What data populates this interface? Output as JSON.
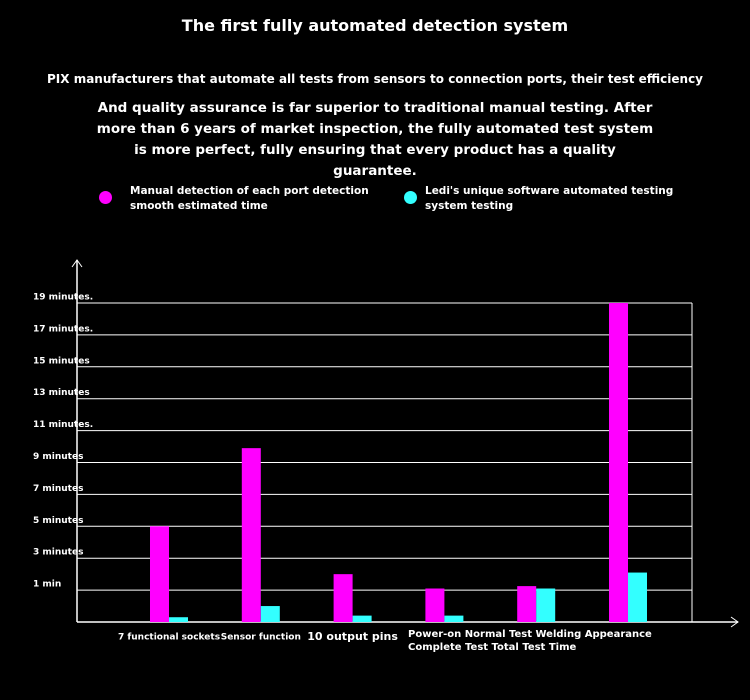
{
  "chart_data": {
    "type": "bar",
    "title": "The first fully automated detection system",
    "subtitle": "PIX manufacturers that automate all tests from sensors to connection ports, their test efficiency",
    "description": "And quality assurance is far superior to traditional manual testing. After more than 6 years of market inspection, the fully automated test system is more perfect, fully ensuring that every product has a quality guarantee.",
    "categories": [
      "7 functional sockets",
      "Sensor function",
      "10 output pins",
      null,
      null,
      null
    ],
    "x_annotation": [
      "Power-on Normal Test Welding Appearance",
      "Complete Test Total Test Time"
    ],
    "series": [
      {
        "name": "Manual detection of each port detection smooth estimated time",
        "color": "#ff00ff",
        "values": [
          5,
          9.9,
          2,
          1.1,
          1.25,
          19
        ]
      },
      {
        "name": "Ledi's unique software automated testing system testing",
        "color": "#33ffff",
        "values": [
          -0.7,
          0,
          -0.6,
          -0.6,
          1.1,
          2.1
        ]
      }
    ],
    "ylim": [
      -1,
      19
    ],
    "yticks": [
      {
        "value": 1,
        "label": "1 min"
      },
      {
        "value": 3,
        "label": "3 minutes"
      },
      {
        "value": 5,
        "label": "5 minutes"
      },
      {
        "value": 7,
        "label": "7 minutes"
      },
      {
        "value": 9,
        "label": "9 minutes"
      },
      {
        "value": 11,
        "label": "11 minutes."
      },
      {
        "value": 13,
        "label": "13 minutes"
      },
      {
        "value": 15,
        "label": "15 minutes"
      },
      {
        "value": 17,
        "label": "17 minutes."
      },
      {
        "value": 19,
        "label": "19 minutes."
      }
    ],
    "grid": true
  }
}
